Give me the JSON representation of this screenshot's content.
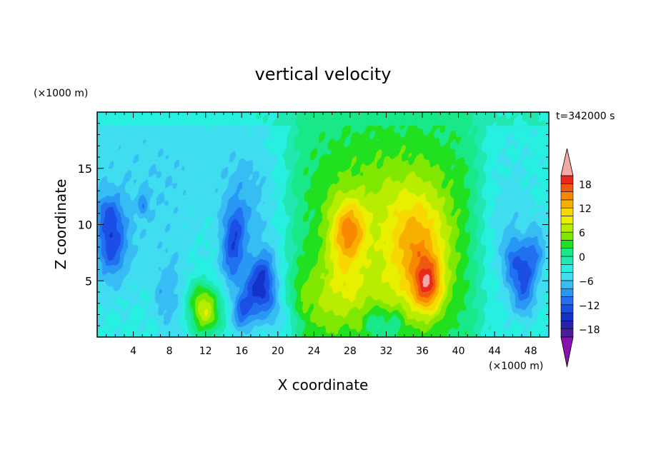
{
  "chart_data": {
    "type": "heatmap",
    "title": "vertical velocity",
    "xlabel": "X coordinate",
    "ylabel": "Z coordinate",
    "x_unit": "(×1000 m)",
    "y_unit": "(×1000 m)",
    "time_label": "t=342000 s",
    "xlim": [
      0,
      50
    ],
    "ylim": [
      0,
      20
    ],
    "x_ticks": [
      4,
      8,
      12,
      16,
      20,
      24,
      28,
      32,
      36,
      40,
      44,
      48
    ],
    "x_tick_labels": [
      "4",
      "8",
      "12",
      "16",
      "20",
      "24",
      "28",
      "32",
      "36",
      "40",
      "44",
      "48"
    ],
    "y_ticks": [
      5,
      10,
      15
    ],
    "y_tick_labels": [
      "5",
      "10",
      "15"
    ],
    "colorbar": {
      "labels": [
        "18",
        "12",
        "6",
        "0",
        "−6",
        "−12",
        "−18"
      ],
      "label_values": [
        18,
        12,
        6,
        0,
        -6,
        -12,
        -18
      ],
      "levels": [
        -20,
        -18,
        -16,
        -14,
        -12,
        -10,
        -8,
        -6,
        -4,
        -2,
        0,
        2,
        4,
        6,
        8,
        10,
        12,
        14,
        16,
        18,
        20
      ],
      "colors": [
        "#4a1e9e",
        "#2a22a8",
        "#1432c8",
        "#1a4ee4",
        "#2070f0",
        "#2898f4",
        "#38bcf4",
        "#40dcf0",
        "#28f0e0",
        "#20e8b0",
        "#18e888",
        "#20e020",
        "#80e800",
        "#b8ec00",
        "#e8f000",
        "#f8d800",
        "#f8b000",
        "#f88800",
        "#f05810",
        "#e82818"
      ],
      "under_color": "#8a10b0",
      "over_color": "#f4a8a8"
    },
    "features": [
      {
        "x": 12,
        "z": 2.2,
        "value": 6
      },
      {
        "x": 36.6,
        "z": 4.6,
        "value": 16
      },
      {
        "x": 28,
        "z": 9.6,
        "value": 11
      },
      {
        "x": 1.5,
        "z": 8.5,
        "value": -12
      },
      {
        "x": 17.5,
        "z": 4.2,
        "value": -13
      },
      {
        "x": 47,
        "z": 5.5,
        "value": -11
      }
    ]
  }
}
